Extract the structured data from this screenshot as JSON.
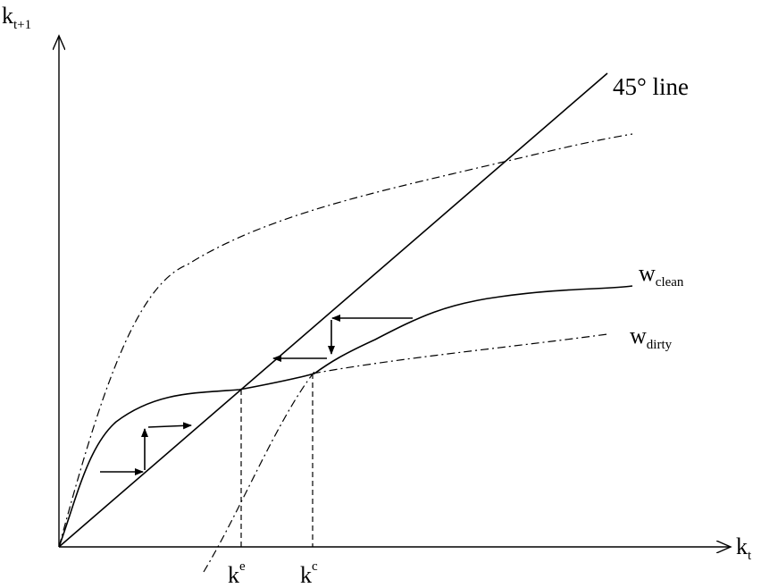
{
  "axes": {
    "y_label": "k",
    "y_label_sub": "t+1",
    "x_label": "k",
    "x_label_sub": "t"
  },
  "lines": {
    "forty_five": "45° line"
  },
  "curves": {
    "clean_main": "w",
    "clean_sub": "clean",
    "dirty_main": "w",
    "dirty_sub": "dirty"
  },
  "points": {
    "ke_main": "k",
    "ke_sup": "e",
    "kc_main": "k",
    "kc_sup": "c"
  }
}
